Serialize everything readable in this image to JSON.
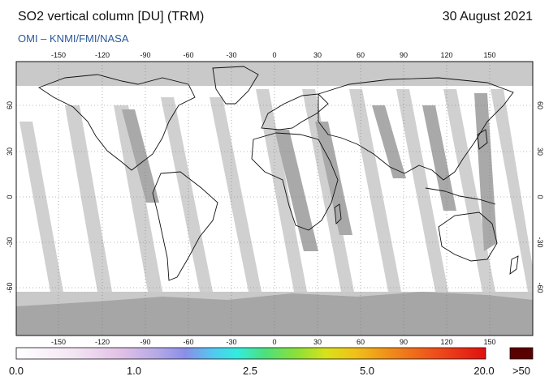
{
  "header": {
    "title": "SO2 vertical column [DU] (TRM)",
    "date": "30 August 2021",
    "credit": "OMI  –  KNMI/FMI/NASA"
  },
  "map": {
    "lon_ticks": [
      "-150",
      "-120",
      "-90",
      "-60",
      "-30",
      "0",
      "30",
      "60",
      "90",
      "120",
      "150"
    ],
    "lat_ticks": [
      "60",
      "30",
      "0",
      "-30",
      "-60"
    ],
    "colors": {
      "no_data_dark": "#a6a6a6",
      "no_data_light": "#c9c9c9",
      "clean": "#ffffff",
      "coast": "#111111",
      "grid": "#777777"
    }
  },
  "colorbar": {
    "labels": [
      "0.0",
      "1.0",
      "2.5",
      "5.0",
      "20.0"
    ],
    "overflow_label": ">50",
    "overflow_color": "#5a0000"
  }
}
